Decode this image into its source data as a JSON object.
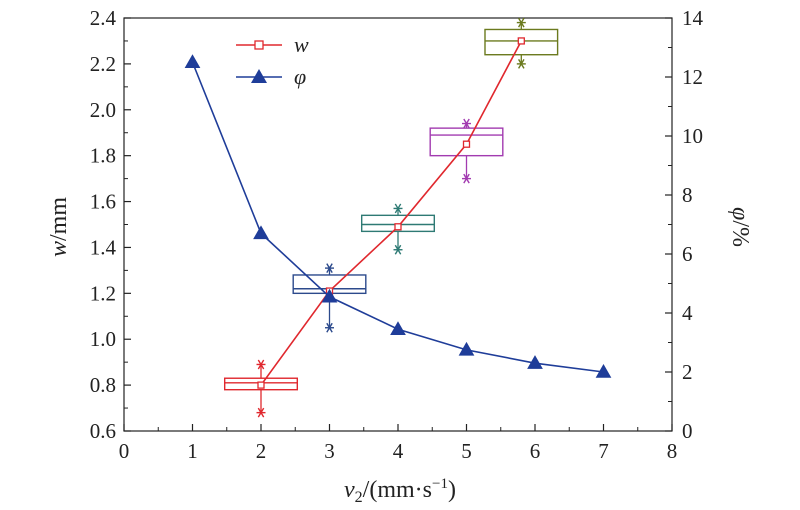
{
  "chart_data": {
    "type": "line",
    "x": [
      1,
      2,
      3,
      4,
      5,
      6,
      7
    ],
    "xlim": [
      0,
      8
    ],
    "x_ticks": [
      "0",
      "1",
      "2",
      "3",
      "4",
      "5",
      "6",
      "7",
      "8"
    ],
    "xlabel_main": "v",
    "xlabel_sub": "2",
    "xlabel_units": "/(mm·s",
    "xlabel_exp": "−1",
    "xlabel_close": ")",
    "ylabel_left_var": "w",
    "ylabel_left_unit": "/mm",
    "ylabel_right_var": "φ",
    "ylabel_right_unit": "/%",
    "ylim_left": [
      0.6,
      2.4
    ],
    "ylim_right": [
      0,
      14
    ],
    "y_left_ticks": [
      "0.6",
      "0.8",
      "1.0",
      "1.2",
      "1.4",
      "1.6",
      "1.8",
      "2.0",
      "2.2",
      "2.4"
    ],
    "y_right_ticks": [
      "0",
      "2",
      "4",
      "6",
      "8",
      "10",
      "12",
      "14"
    ],
    "legend": {
      "position": "top-left-inside"
    },
    "series": [
      {
        "name": "w",
        "axis": "left",
        "color": "#e0282e",
        "marker": "square-open",
        "points": [
          [
            2,
            0.8
          ],
          [
            3,
            1.21
          ],
          [
            4,
            1.49
          ],
          [
            5,
            1.85
          ],
          [
            5.8,
            2.3
          ]
        ]
      },
      {
        "name": "φ",
        "axis": "right",
        "color": "#1f3d99",
        "marker": "triangle-filled",
        "points": [
          [
            1,
            12.5
          ],
          [
            2,
            6.7
          ],
          [
            3,
            4.55
          ],
          [
            4,
            3.45
          ],
          [
            5,
            2.75
          ],
          [
            6,
            2.3
          ],
          [
            7,
            2.0
          ]
        ]
      }
    ],
    "boxes": [
      {
        "x": 2,
        "q1": 0.78,
        "median": 0.81,
        "q3": 0.83,
        "whisker_low": 0.68,
        "whisker_high": 0.89,
        "outlier_low": 0.68,
        "outlier_high": 0.89,
        "color": "#e0282e"
      },
      {
        "x": 3,
        "q1": 1.2,
        "median": 1.22,
        "q3": 1.28,
        "whisker_low": 1.05,
        "whisker_high": 1.31,
        "outlier_low": 1.05,
        "outlier_high": 1.31,
        "color": "#2c4a8c"
      },
      {
        "x": 4,
        "q1": 1.47,
        "median": 1.5,
        "q3": 1.54,
        "whisker_low": 1.39,
        "whisker_high": 1.57,
        "outlier_low": 1.39,
        "outlier_high": 1.57,
        "color": "#2e7a74"
      },
      {
        "x": 5,
        "q1": 1.8,
        "median": 1.89,
        "q3": 1.92,
        "whisker_low": 1.7,
        "whisker_high": 1.94,
        "outlier_low": 1.7,
        "outlier_high": 1.94,
        "color": "#a23bb0"
      },
      {
        "x": 5.8,
        "q1": 2.24,
        "median": 2.3,
        "q3": 2.35,
        "whisker_low": 2.2,
        "whisker_high": 2.38,
        "outlier_low": 2.2,
        "outlier_high": 2.38,
        "color": "#6b7a1e"
      }
    ]
  }
}
